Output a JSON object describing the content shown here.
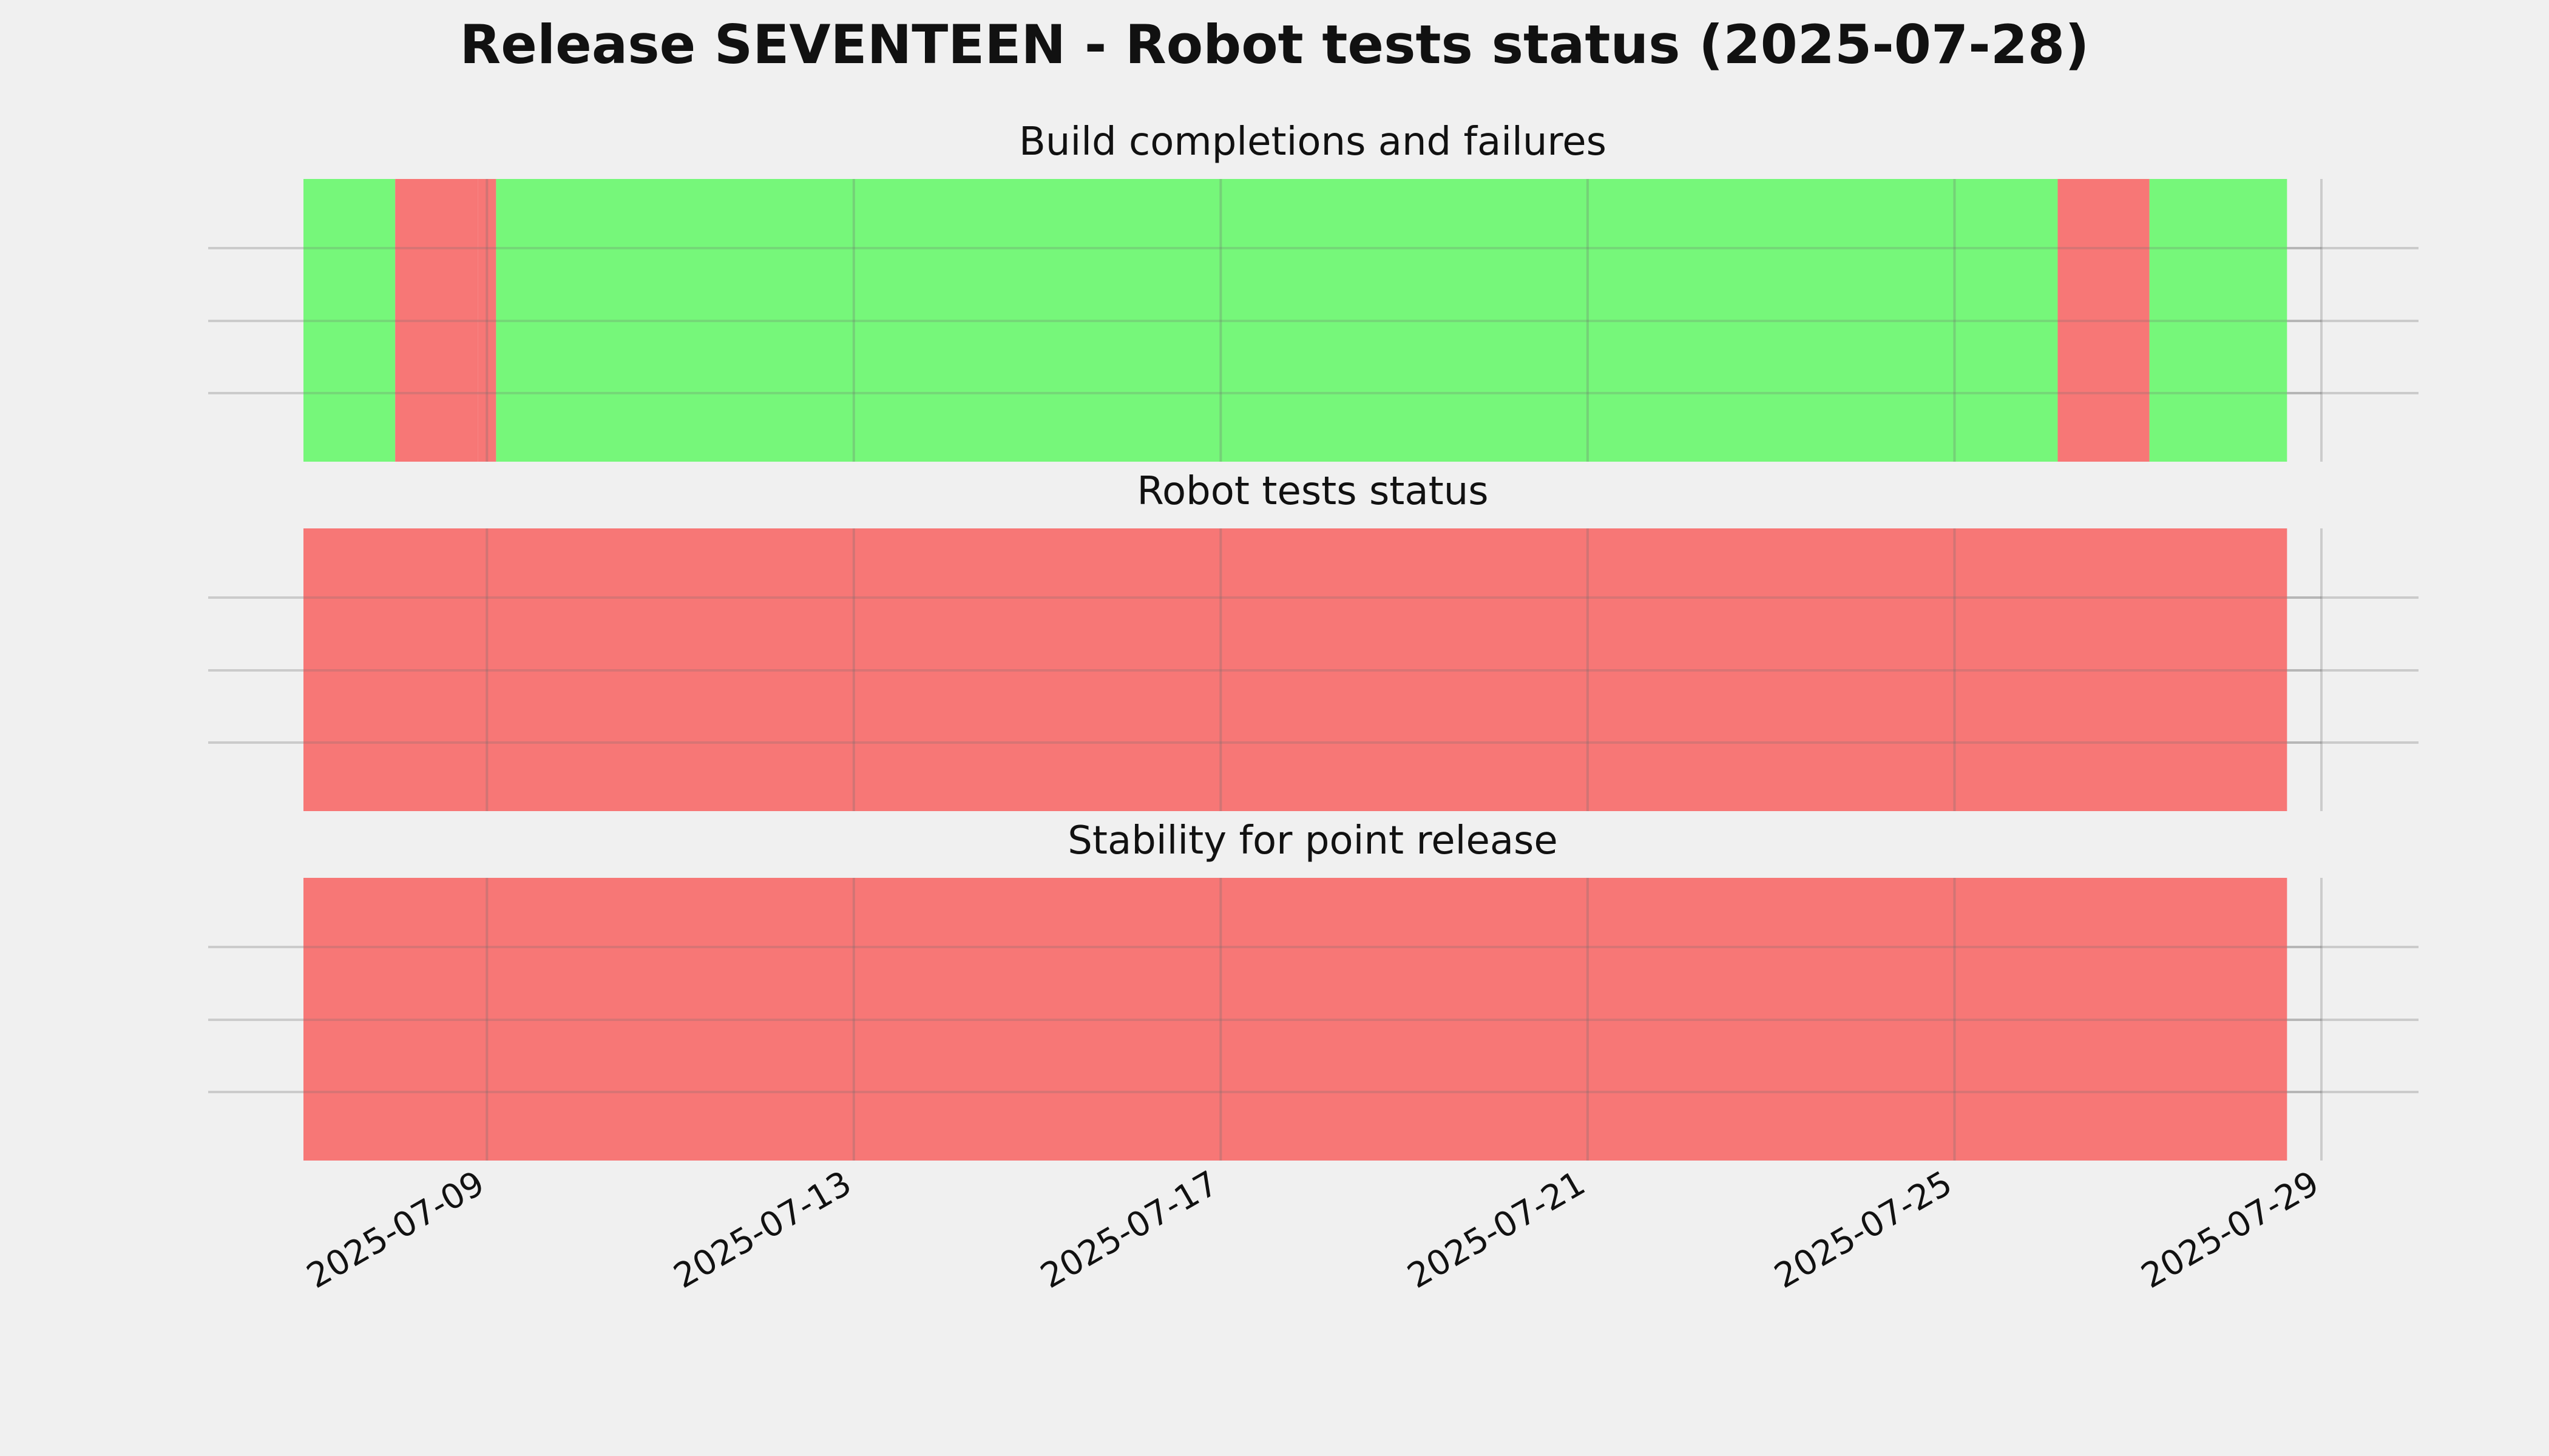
{
  "title": "Release SEVENTEEN - Robot tests status (2025-07-28)",
  "colors": {
    "pass": "#76f77a",
    "fail": "#f77776",
    "background": "#f0f0f0",
    "grid": "#cbcbcb"
  },
  "chart_data": [
    {
      "type": "timeline",
      "title": "Build completions and failures",
      "xlim": [
        "2025-07-07T00:00",
        "2025-07-29T00:00"
      ],
      "grid": true,
      "segments": [
        {
          "start": "2025-07-07T00:00",
          "end": "2025-07-08T00:00",
          "status": "pass"
        },
        {
          "start": "2025-07-08T00:00",
          "end": "2025-07-08T21:36",
          "status": "fail"
        },
        {
          "start": "2025-07-08T21:36",
          "end": "2025-07-09T02:24",
          "status": "fail"
        },
        {
          "start": "2025-07-09T02:24",
          "end": "2025-07-26T03:00",
          "status": "pass"
        },
        {
          "start": "2025-07-26T03:00",
          "end": "2025-07-27T03:00",
          "status": "fail"
        },
        {
          "start": "2025-07-27T03:00",
          "end": "2025-07-28T15:00",
          "status": "pass"
        }
      ]
    },
    {
      "type": "timeline",
      "title": "Robot tests status",
      "xlim": [
        "2025-07-07T00:00",
        "2025-07-29T00:00"
      ],
      "grid": true,
      "segments": [
        {
          "start": "2025-07-07T00:00",
          "end": "2025-07-28T15:00",
          "status": "fail"
        }
      ]
    },
    {
      "type": "timeline",
      "title": "Stability for point release",
      "xlim": [
        "2025-07-07T00:00",
        "2025-07-29T00:00"
      ],
      "grid": true,
      "segments": [
        {
          "start": "2025-07-07T00:00",
          "end": "2025-07-28T15:00",
          "status": "fail"
        }
      ]
    }
  ],
  "x_ticks": [
    "2025-07-09",
    "2025-07-13",
    "2025-07-17",
    "2025-07-21",
    "2025-07-25",
    "2025-07-29"
  ]
}
